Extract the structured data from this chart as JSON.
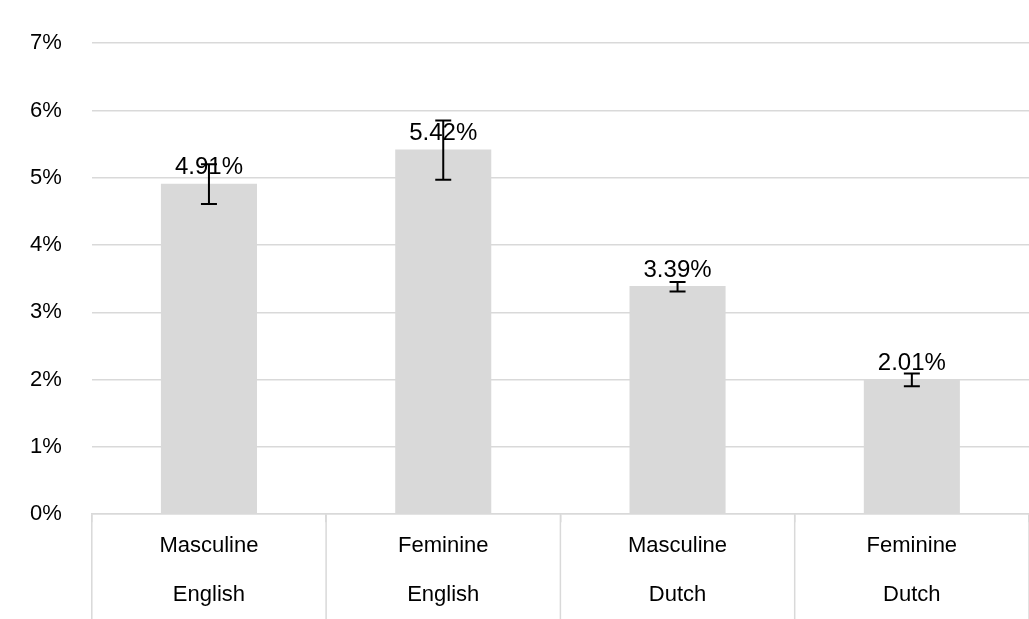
{
  "chart_data": {
    "type": "bar",
    "categories": [
      "Masculine\nEnglish",
      "Feminine\nEnglish",
      "Masculine\nDutch",
      "Feminine\nDutch"
    ],
    "values": [
      4.91,
      5.42,
      3.39,
      2.01
    ],
    "value_labels": [
      "4.91%",
      "5.42%",
      "3.39%",
      "2.01%"
    ],
    "errors": [
      [
        4.61,
        5.2
      ],
      [
        4.97,
        5.85
      ],
      [
        3.31,
        3.45
      ],
      [
        1.9,
        2.09
      ]
    ],
    "color": "#d9d9d9",
    "ylim": [
      0,
      7
    ],
    "yticks": [
      {
        "value": 0,
        "label": "0%"
      },
      {
        "value": 1,
        "label": "1%"
      },
      {
        "value": 2,
        "label": "2%"
      },
      {
        "value": 3,
        "label": "3%"
      },
      {
        "value": 4,
        "label": "4%"
      },
      {
        "value": 5,
        "label": "5%"
      },
      {
        "value": 6,
        "label": "6%"
      },
      {
        "value": 7,
        "label": "7%"
      }
    ],
    "grid": "y",
    "legend": false
  }
}
